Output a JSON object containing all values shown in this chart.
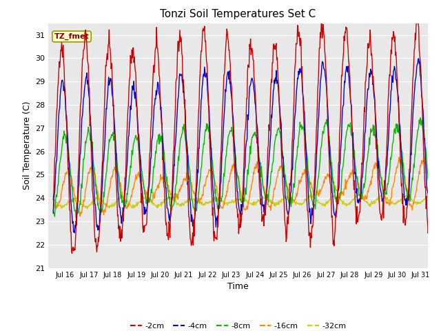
{
  "title": "Tonzi Soil Temperatures Set C",
  "xlabel": "Time",
  "ylabel": "Soil Temperature (C)",
  "annotation": "TZ_fmet",
  "ylim": [
    21.0,
    31.5
  ],
  "yticks": [
    21.0,
    22.0,
    23.0,
    24.0,
    25.0,
    26.0,
    27.0,
    28.0,
    29.0,
    30.0,
    31.0
  ],
  "fig_bg_color": "#ffffff",
  "plot_bg_color": "#e8e8e8",
  "lines": {
    "-2cm": {
      "color": "#cc0000",
      "lw": 1.0
    },
    "-4cm": {
      "color": "#0000cc",
      "lw": 1.0
    },
    "-8cm": {
      "color": "#00bb00",
      "lw": 1.0
    },
    "-16cm": {
      "color": "#ff8800",
      "lw": 1.0
    },
    "-32cm": {
      "color": "#cccc00",
      "lw": 1.0
    }
  },
  "n_days": 16,
  "points_per_day": 48,
  "start_day": 15.5,
  "xlim": [
    15.3,
    31.3
  ],
  "xtick_days": [
    16,
    17,
    18,
    19,
    20,
    21,
    22,
    23,
    24,
    25,
    26,
    27,
    28,
    29,
    30,
    31
  ]
}
